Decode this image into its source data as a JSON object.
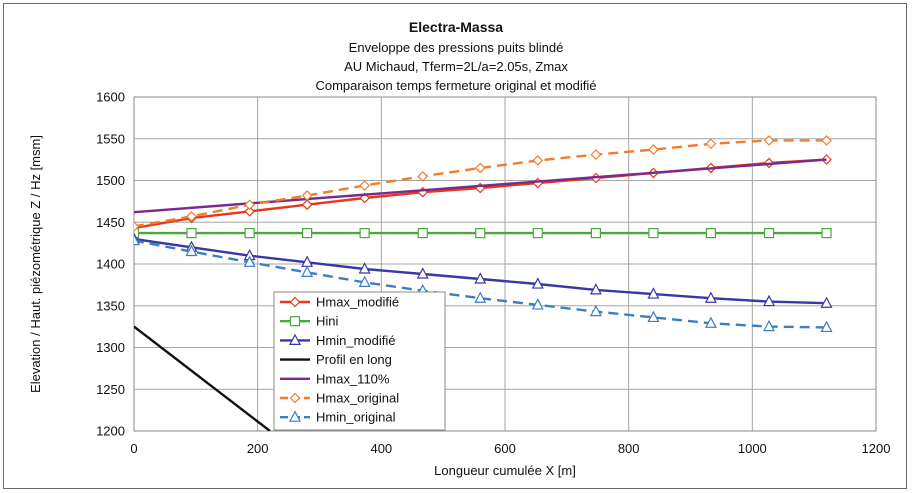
{
  "chart_data": {
    "type": "line",
    "title": "Electra-Massa",
    "subtitles": [
      "Enveloppe des pressions puits blindé",
      "AU Michaud, Tferm=2L/a=2.05s, Zmax",
      "Comparaison temps fermeture original et modifié"
    ],
    "xlabel": "Longueur cumulée X [m]",
    "ylabel": "Elevation / Haut. piézométrique Z / Hz [msm]",
    "xlim": [
      0,
      1200
    ],
    "ylim": [
      1200,
      1600
    ],
    "x_ticks": [
      "0",
      "200",
      "400",
      "600",
      "800",
      "1000",
      "1200"
    ],
    "y_ticks": [
      "1200",
      "1250",
      "1300",
      "1350",
      "1400",
      "1450",
      "1500",
      "1550",
      "1600"
    ],
    "grid": true,
    "legend_position": "lower-left-inside",
    "series": [
      {
        "name": "Hmax_modifié",
        "color": "#e8381c",
        "dash": "solid",
        "marker": "diamond",
        "x": [
          0,
          93,
          187,
          280,
          373,
          467,
          560,
          653,
          747,
          840,
          933,
          1027,
          1120
        ],
        "y": [
          1443,
          1455,
          1463,
          1471,
          1479,
          1486,
          1491,
          1497,
          1503,
          1509,
          1515,
          1521,
          1525
        ]
      },
      {
        "name": "Hini",
        "color": "#4aa83c",
        "dash": "solid",
        "marker": "square",
        "x": [
          0,
          93,
          187,
          280,
          373,
          467,
          560,
          653,
          747,
          840,
          933,
          1027,
          1120
        ],
        "y": [
          1437,
          1437,
          1437,
          1437,
          1437,
          1437,
          1437,
          1437,
          1437,
          1437,
          1437,
          1437,
          1437
        ]
      },
      {
        "name": "Hmin_modifié",
        "color": "#3b37a6",
        "dash": "solid",
        "marker": "triangle",
        "x": [
          0,
          93,
          187,
          280,
          373,
          467,
          560,
          653,
          747,
          840,
          933,
          1027,
          1120
        ],
        "y": [
          1430,
          1420,
          1410,
          1402,
          1394,
          1388,
          1382,
          1376,
          1369,
          1364,
          1359,
          1355,
          1353
        ]
      },
      {
        "name": "Profil en long",
        "color": "#111111",
        "dash": "solid",
        "marker": "none",
        "x": [
          0,
          220
        ],
        "y": [
          1325,
          1200
        ]
      },
      {
        "name": "Hmax_110%",
        "color": "#7a2a8c",
        "dash": "solid",
        "marker": "none",
        "x": [
          0,
          1120
        ],
        "y": [
          1462,
          1525
        ]
      },
      {
        "name": "Hmax_original",
        "color": "#f07d2a",
        "dash": "dashed",
        "marker": "diamond",
        "x": [
          0,
          93,
          187,
          280,
          373,
          467,
          560,
          653,
          747,
          840,
          933,
          1027,
          1120
        ],
        "y": [
          1445,
          1457,
          1471,
          1482,
          1494,
          1505,
          1515,
          1524,
          1531,
          1537,
          1544,
          1548,
          1548
        ]
      },
      {
        "name": "Hmin_original",
        "color": "#3a7fc4",
        "dash": "dashed",
        "marker": "triangle",
        "x": [
          0,
          93,
          187,
          280,
          373,
          467,
          560,
          653,
          747,
          840,
          933,
          1027,
          1120
        ],
        "y": [
          1428,
          1415,
          1402,
          1390,
          1378,
          1368,
          1359,
          1351,
          1343,
          1336,
          1329,
          1325,
          1324
        ]
      }
    ]
  }
}
